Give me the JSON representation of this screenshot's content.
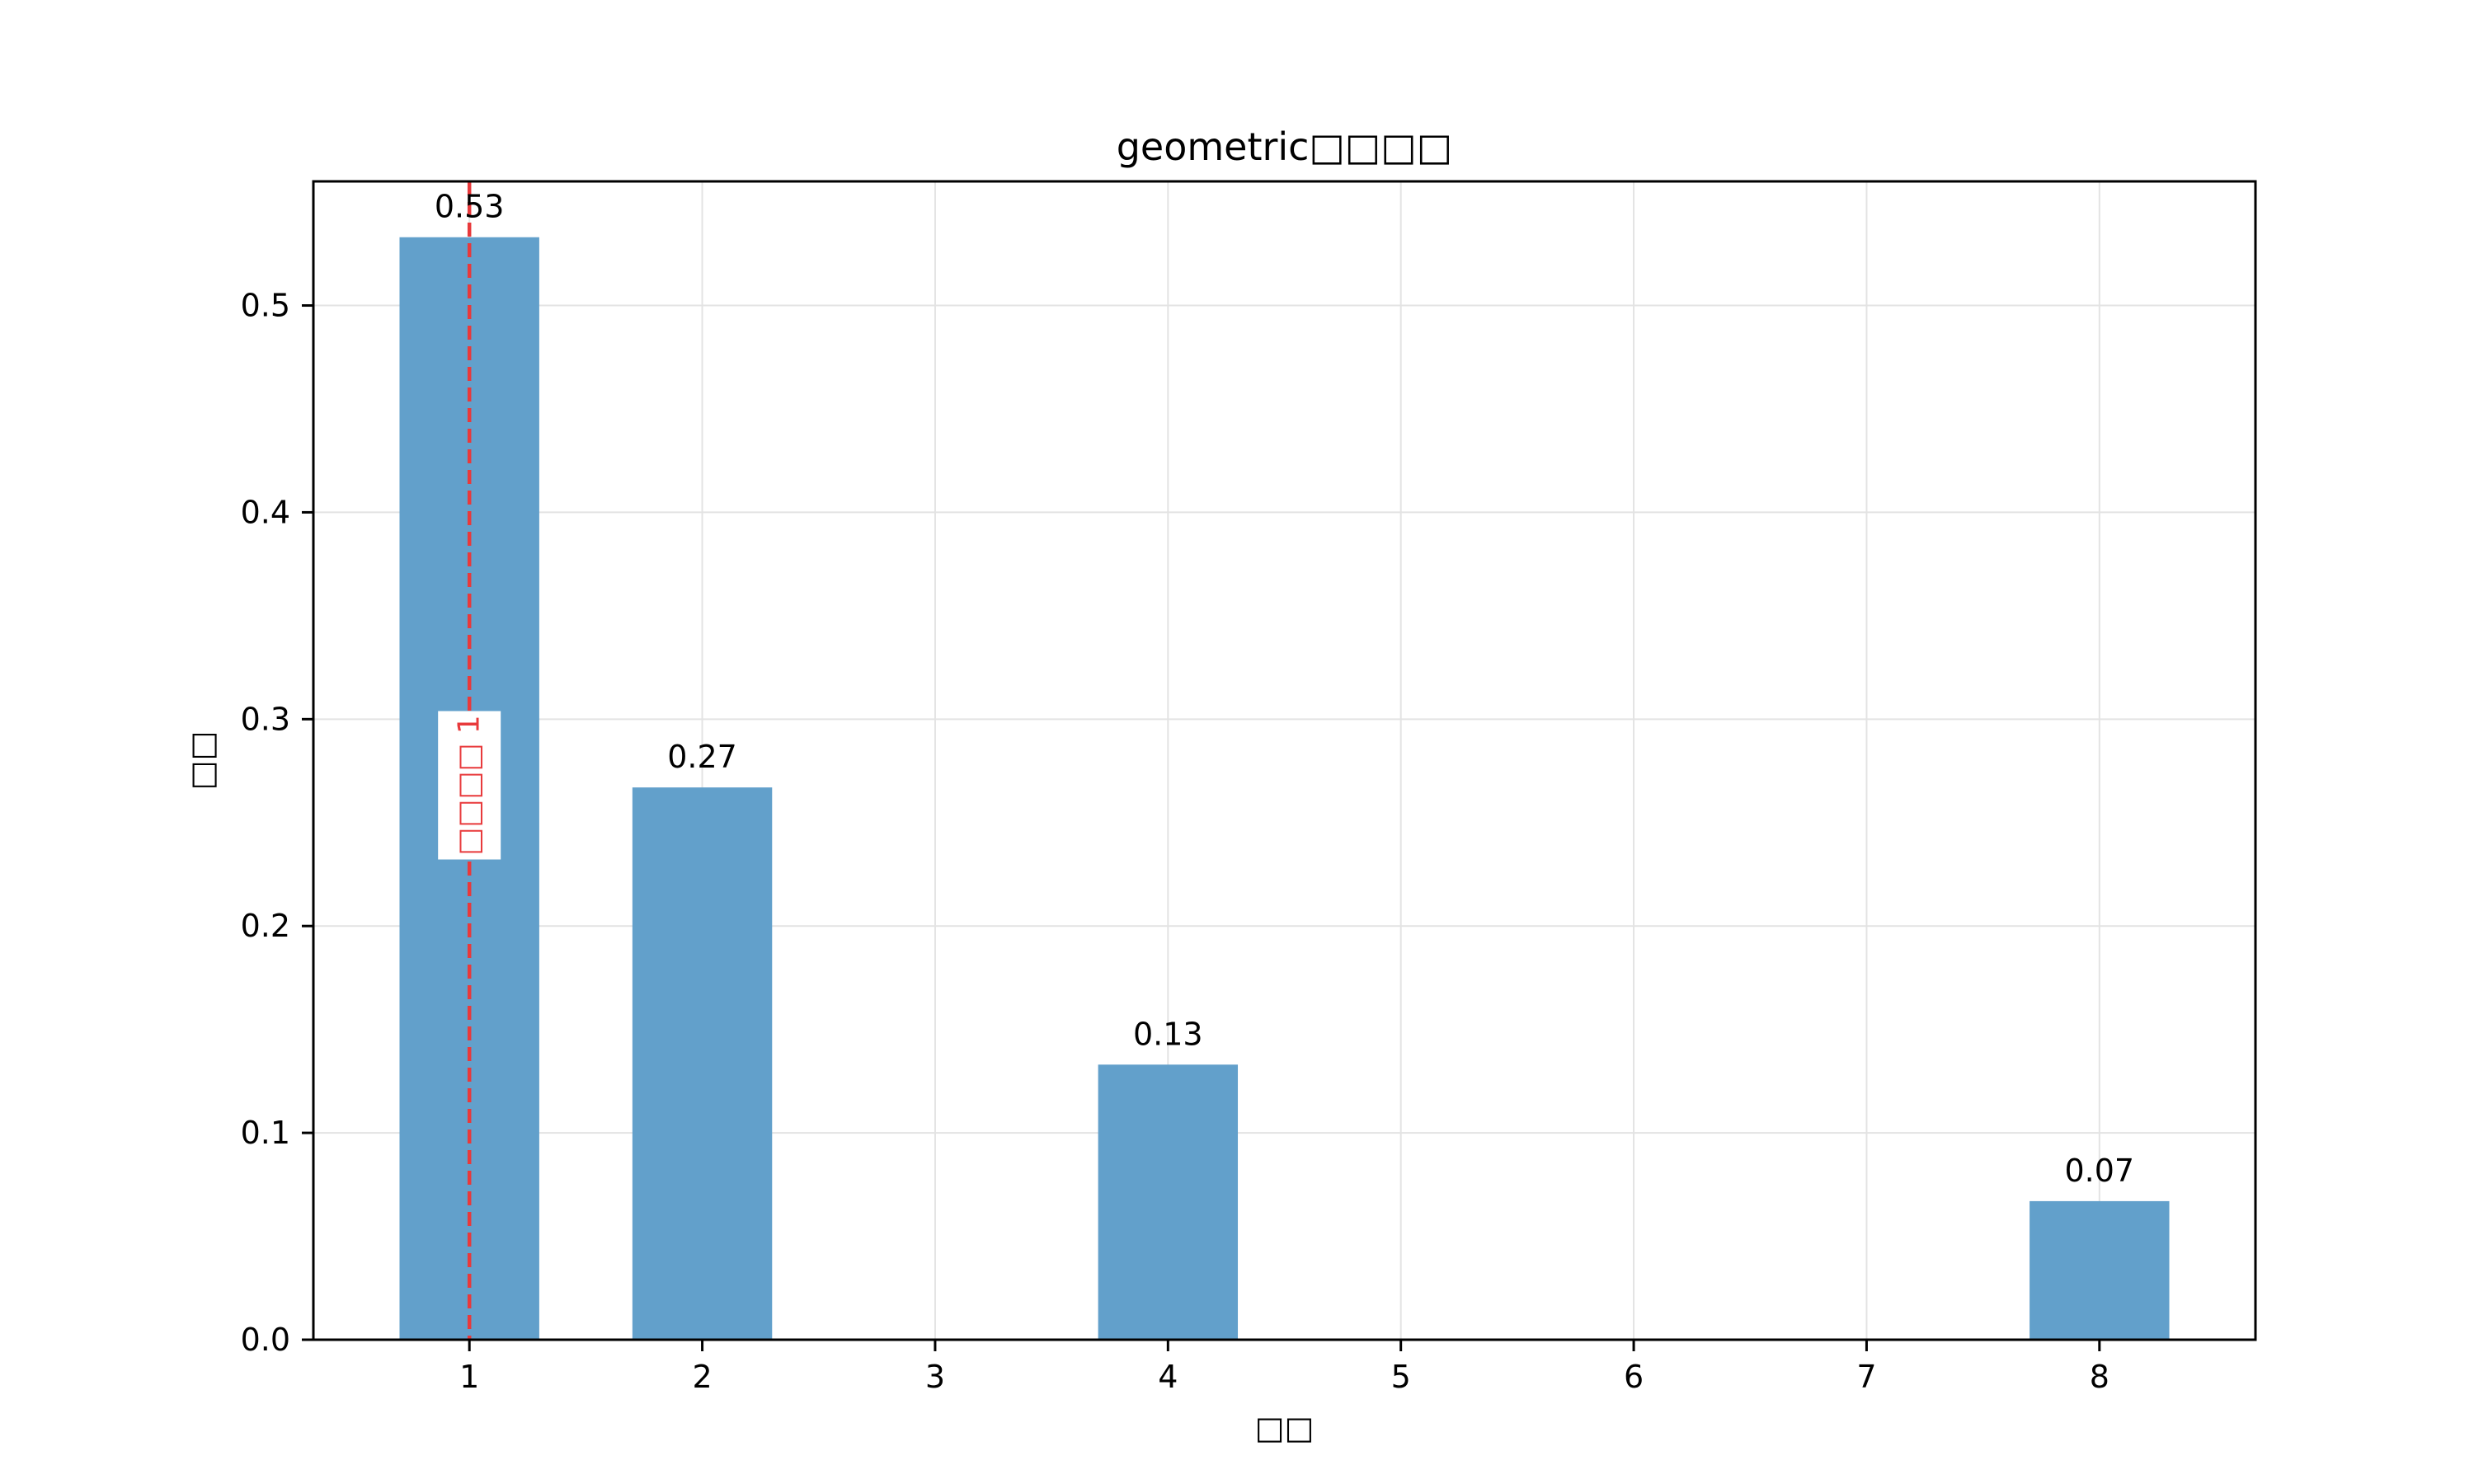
{
  "chart_data": {
    "type": "bar",
    "title": "geometric□□□□",
    "xlabel": "□□",
    "ylabel": "□□",
    "x": [
      1,
      2,
      4,
      8
    ],
    "values": [
      0.533,
      0.267,
      0.133,
      0.067
    ],
    "data_labels": [
      "0.53",
      "0.27",
      "0.13",
      "0.07"
    ],
    "xlim": [
      0.33,
      8.67
    ],
    "ylim": [
      0,
      0.56
    ],
    "xticks": [
      1,
      2,
      3,
      4,
      5,
      6,
      7,
      8
    ],
    "xtick_labels": [
      "1",
      "2",
      "3",
      "4",
      "5",
      "6",
      "7",
      "8"
    ],
    "yticks": [
      0.0,
      0.1,
      0.2,
      0.3,
      0.4,
      0.5
    ],
    "ytick_labels": [
      "0.0",
      "0.1",
      "0.2",
      "0.3",
      "0.4",
      "0.5"
    ],
    "bar_width": 0.6,
    "grid": true,
    "colors": {
      "bar": "#62a0cb",
      "reference_line": "#e8393b",
      "grid": "#e3e3e3",
      "axes": "#000000"
    },
    "reference_line": {
      "x": 1,
      "label": "□□□□ 1"
    }
  }
}
